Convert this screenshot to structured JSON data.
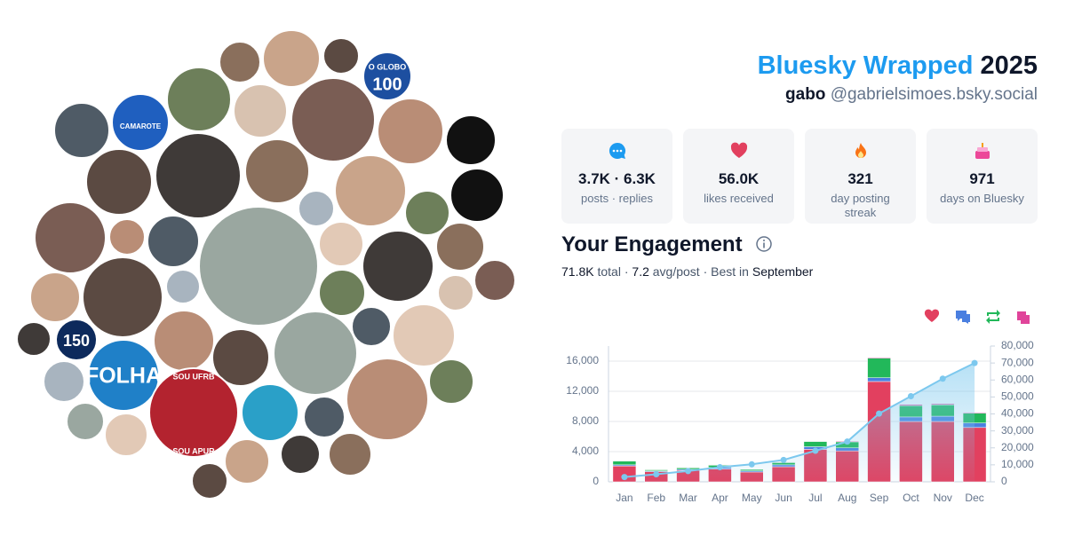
{
  "header": {
    "title": "Bluesky Wrapped",
    "year": "2025",
    "name": "gabo",
    "handle": "@gabrielsimoes.bsky.social"
  },
  "stats": [
    {
      "value": "3.7K · 6.3K",
      "label": "posts · replies"
    },
    {
      "value": "56.0K",
      "label": "likes received"
    },
    {
      "value": "321",
      "label": "day posting streak"
    },
    {
      "value": "971",
      "label": "days on Bluesky"
    }
  ],
  "engagement": {
    "title": "Your Engagement",
    "total": "71.8K",
    "total_label": "total",
    "separator": "·",
    "avg": "7.2",
    "avg_label": "avg/post",
    "best_label": "Best in",
    "best_month": "September"
  },
  "avatar_labels": {
    "globo": "O GLOBO",
    "globo_number": "100",
    "camarote": "CAMAROTE",
    "folha": "FOLHA",
    "ufrb": "SOU UFRB",
    "apur": "SOU APUR",
    "number": "150"
  },
  "chart_data": {
    "type": "bar",
    "stacked": true,
    "categories": [
      "Jan",
      "Feb",
      "Mar",
      "Apr",
      "May",
      "Jun",
      "Jul",
      "Aug",
      "Sep",
      "Oct",
      "Nov",
      "Dec"
    ],
    "series": [
      {
        "color": "#e2405f",
        "values": [
          2100,
          1350,
          1500,
          1700,
          1300,
          2000,
          4300,
          4100,
          13300,
          8000,
          8000,
          7200
        ]
      },
      {
        "color": "#4a7fe0",
        "values": [
          150,
          100,
          150,
          200,
          150,
          250,
          350,
          400,
          500,
          600,
          700,
          600
        ]
      },
      {
        "color": "#22b85a",
        "values": [
          500,
          150,
          200,
          300,
          200,
          300,
          700,
          800,
          2600,
          1500,
          1500,
          1300
        ]
      },
      {
        "color": "#e0449a",
        "values": [
          50,
          50,
          50,
          50,
          50,
          50,
          50,
          100,
          100,
          150,
          150,
          100
        ]
      },
      {
        "type": "line",
        "axis": "y2",
        "color": "#7cc8ee",
        "values": [
          2800,
          4450,
          6350,
          8600,
          10300,
          12900,
          18300,
          23700,
          40200,
          50450,
          60800,
          70000
        ]
      }
    ],
    "ylim": [
      0,
      18000
    ],
    "yticks": [
      0,
      {
        "value": 4000,
        "label": "4,000"
      },
      {
        "value": 8000,
        "label": "8,000"
      },
      {
        "value": 12000,
        "label": "12,000"
      },
      {
        "value": 16000,
        "label": "16,000"
      }
    ],
    "y2lim": [
      0,
      80000
    ],
    "y2ticks": [
      0,
      {
        "value": 10000,
        "label": "10,000"
      },
      {
        "value": 20000,
        "label": "20,000"
      },
      {
        "value": 30000,
        "label": "30,000"
      },
      {
        "value": 40000,
        "label": "40,000"
      },
      {
        "value": 50000,
        "label": "50,000"
      },
      {
        "value": 60000,
        "label": "60,000"
      },
      {
        "value": 70000,
        "label": "70,000"
      },
      {
        "value": 80000,
        "label": "80,000"
      }
    ],
    "grid": true
  }
}
